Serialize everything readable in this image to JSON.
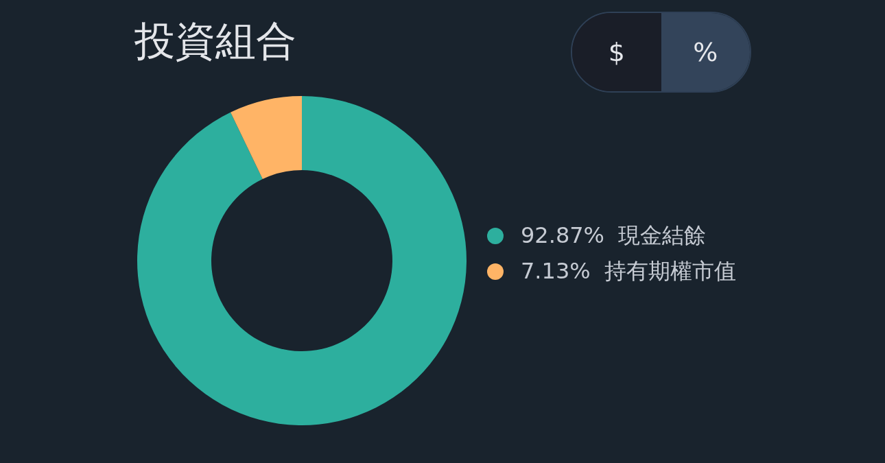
{
  "chart_data": {
    "type": "donut",
    "title": "投資組合",
    "categories": [
      "現金結餘",
      "持有期權市值"
    ],
    "values": [
      92.87,
      7.13
    ],
    "value_labels": [
      "92.87%",
      "7.13%"
    ],
    "colors": [
      "#2daf9e",
      "#ffb466"
    ],
    "legend": "right",
    "annotations": [
      "$",
      "%"
    ]
  }
}
